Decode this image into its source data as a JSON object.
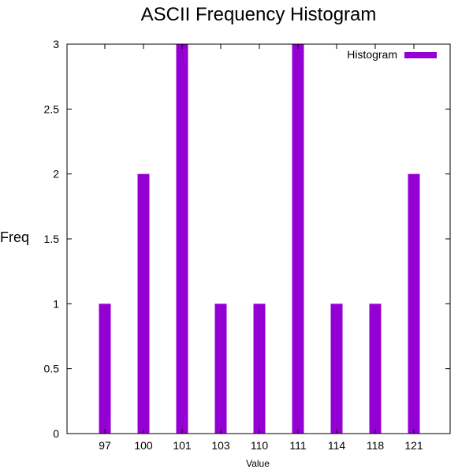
{
  "chart_data": {
    "type": "bar",
    "title": "ASCII Frequency Histogram",
    "xlabel": "Value",
    "ylabel": "Freq",
    "categories": [
      "97",
      "100",
      "101",
      "103",
      "110",
      "111",
      "114",
      "118",
      "121"
    ],
    "series": [
      {
        "name": "Histogram",
        "values": [
          1,
          2,
          3,
          1,
          1,
          3,
          1,
          1,
          2
        ],
        "color": "#9400d3"
      }
    ],
    "ylim": [
      0,
      3
    ],
    "yticks": [
      "0",
      "0.5",
      "1",
      "1.5",
      "2",
      "2.5",
      "3"
    ],
    "grid": false,
    "legend_position": "top-right"
  }
}
